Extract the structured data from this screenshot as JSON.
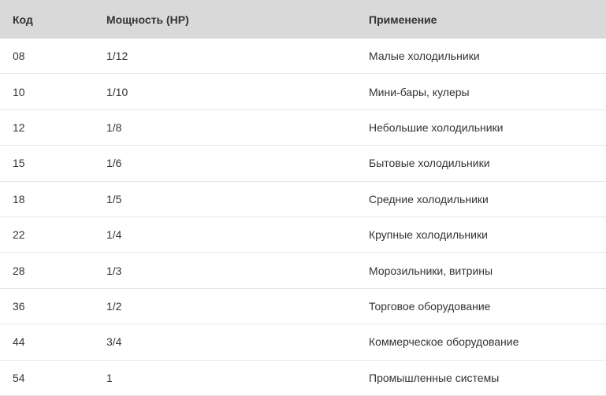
{
  "table": {
    "headers": [
      "Код",
      "Мощность (HP)",
      "Применение"
    ],
    "rows": [
      [
        "08",
        "1/12",
        "Малые холодильники"
      ],
      [
        "10",
        "1/10",
        "Мини-бары, кулеры"
      ],
      [
        "12",
        "1/8",
        "Небольшие холодильники"
      ],
      [
        "15",
        "1/6",
        "Бытовые холодильники"
      ],
      [
        "18",
        "1/5",
        "Средние холодильники"
      ],
      [
        "22",
        "1/4",
        "Крупные холодильники"
      ],
      [
        "28",
        "1/3",
        "Морозильники, витрины"
      ],
      [
        "36",
        "1/2",
        "Торговое оборудование"
      ],
      [
        "44",
        "3/4",
        "Коммерческое оборудование"
      ],
      [
        "54",
        "1",
        "Промышленные системы"
      ]
    ]
  }
}
